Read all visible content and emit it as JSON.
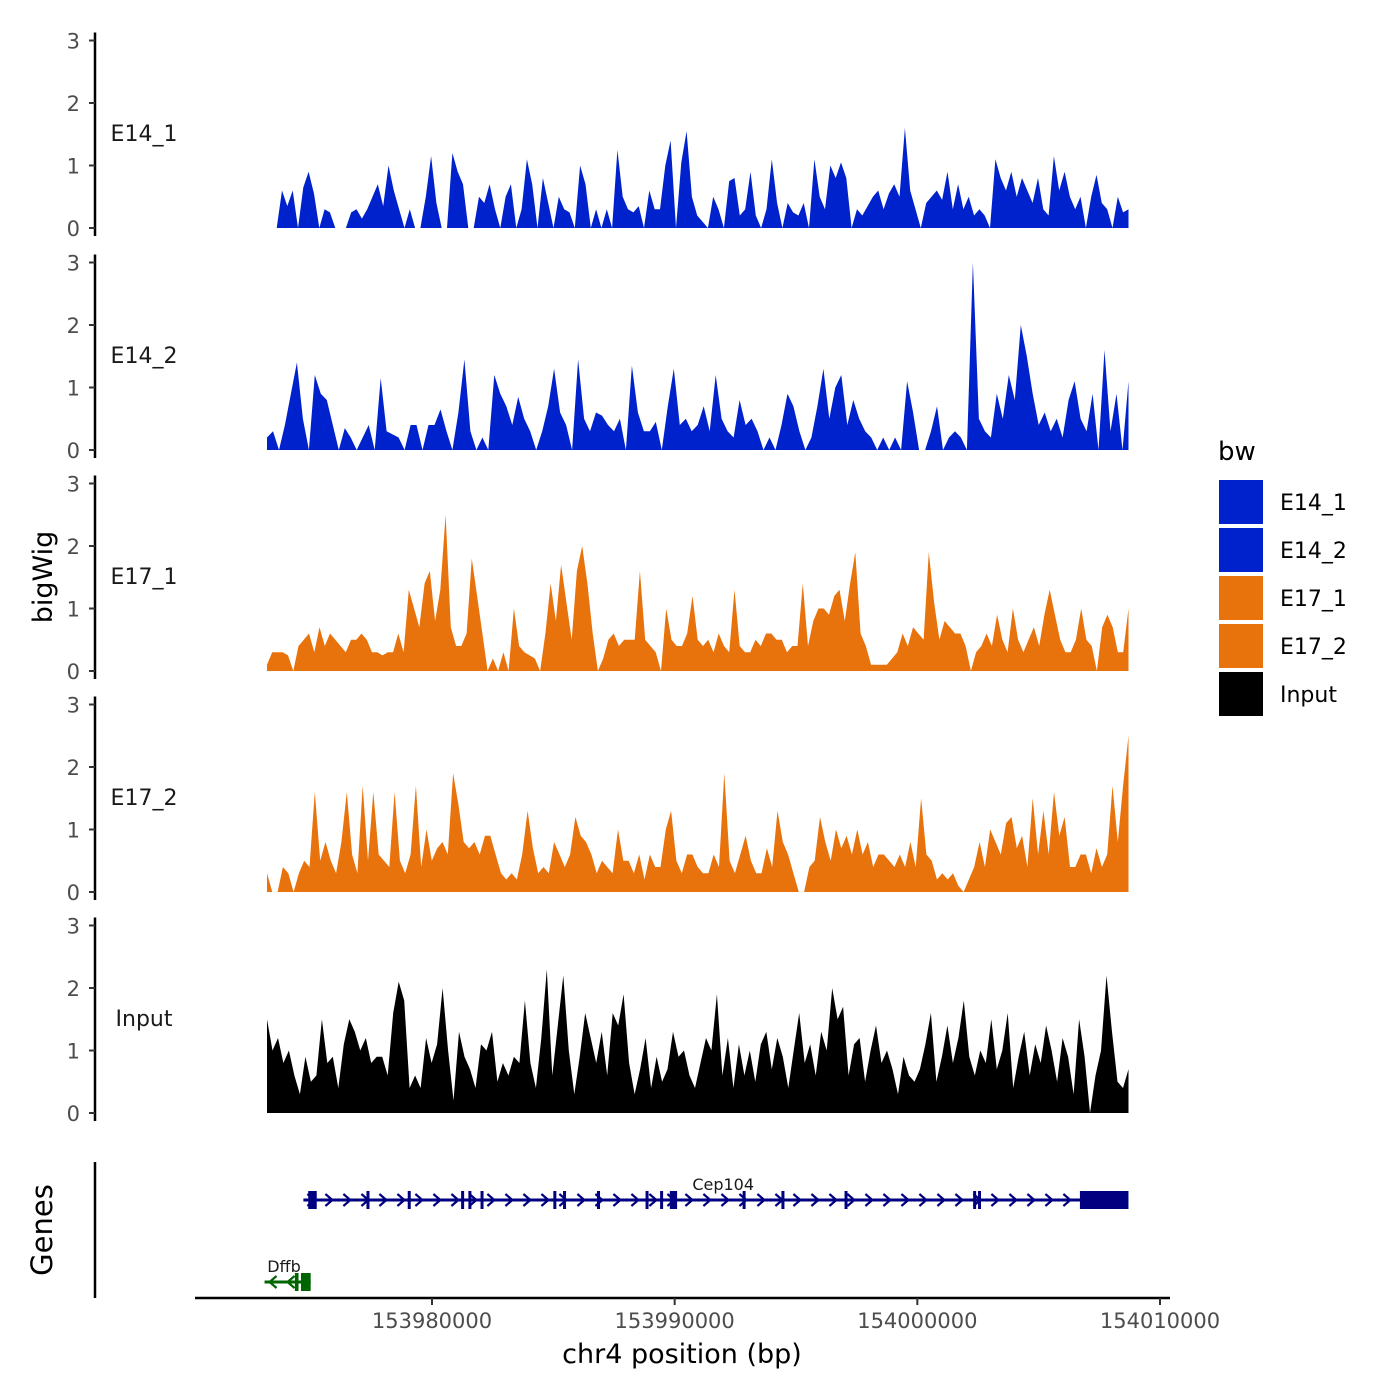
{
  "chart_data": {
    "type": "area",
    "title": "",
    "xlabel": "chr4 position (bp)",
    "ylabel": "bigWig",
    "genes_label": "Genes",
    "xlim": [
      153971000,
      154010500
    ],
    "xticks": [
      153980000,
      153990000,
      154000000,
      154010000
    ],
    "xtick_labels": [
      "153980000",
      "153990000",
      "154000000",
      "154010000"
    ],
    "ylim": [
      0,
      3
    ],
    "yticks": [
      0,
      1,
      2,
      3
    ],
    "ytick_labels": [
      "0",
      "1",
      "2",
      "3"
    ],
    "legend": {
      "title": "bw",
      "position": "right",
      "entries": [
        {
          "label": "E14_1",
          "color": "#0022cc"
        },
        {
          "label": "E14_2",
          "color": "#0022cc"
        },
        {
          "label": "E17_1",
          "color": "#e8720c"
        },
        {
          "label": "E17_2",
          "color": "#e8720c"
        },
        {
          "label": "Input",
          "color": "#000000"
        }
      ]
    },
    "series": [
      {
        "name": "E14_1",
        "color": "#0022cc",
        "x_start": 153973600,
        "x_end": 154008700,
        "values": [
          0,
          0.6,
          0.35,
          0.6,
          0,
          0.65,
          0.9,
          0.55,
          0,
          0.3,
          0.25,
          0,
          0,
          0,
          0.25,
          0.3,
          0.15,
          0.3,
          0.5,
          0.7,
          0.35,
          1.0,
          0.6,
          0.3,
          0,
          0.3,
          0,
          0,
          0.5,
          1.15,
          0.4,
          0,
          0,
          1.2,
          0.9,
          0.7,
          0,
          0,
          0.5,
          0.4,
          0.7,
          0.3,
          0,
          0.5,
          0.7,
          0,
          0.3,
          1.1,
          0.7,
          0,
          0.8,
          0.4,
          0,
          0.5,
          0.3,
          0.25,
          0,
          1.0,
          0.7,
          0,
          0.3,
          0,
          0.3,
          0,
          1.25,
          0.5,
          0.3,
          0.25,
          0.35,
          0,
          0.6,
          0.3,
          0.3,
          1.0,
          1.4,
          0,
          1.05,
          1.55,
          0.5,
          0.2,
          0.1,
          0,
          0.5,
          0.3,
          0,
          0.75,
          0.8,
          0.2,
          0.3,
          0.9,
          0.2,
          0,
          0.3,
          1.1,
          0.4,
          0,
          0.4,
          0.25,
          0.2,
          0.4,
          0,
          1.1,
          0.5,
          0.3,
          1.0,
          0.8,
          1.05,
          0.8,
          0,
          0.3,
          0.2,
          0.35,
          0.5,
          0.6,
          0.3,
          0.55,
          0.7,
          0.5,
          1.6,
          0.6,
          0.3,
          0,
          0.4,
          0.5,
          0.6,
          0.45,
          0.9,
          0.3,
          0.7,
          0.3,
          0.5,
          0.2,
          0.3,
          0.2,
          0,
          1.1,
          0.8,
          0.6,
          0.9,
          0.5,
          0.8,
          0.6,
          0.4,
          0.8,
          0.3,
          0.2,
          1.15,
          0.6,
          0.9,
          0.5,
          0.3,
          0.5,
          0,
          0.5,
          0.85,
          0.4,
          0.3,
          0,
          0.5,
          0.25,
          0.3
        ]
      },
      {
        "name": "E14_2",
        "color": "#0022cc",
        "x_start": 153973200,
        "x_end": 154008700,
        "values": [
          0.2,
          0.3,
          0,
          0.4,
          0.9,
          1.4,
          0.5,
          0,
          1.2,
          0.9,
          0.8,
          0.4,
          0,
          0.35,
          0.2,
          0,
          0.2,
          0.4,
          0,
          1.15,
          0.3,
          0.25,
          0.2,
          0,
          0.4,
          0.4,
          0,
          0.4,
          0.4,
          0.65,
          0.3,
          0,
          0.6,
          1.45,
          0.3,
          0,
          0.2,
          0,
          1.2,
          0.9,
          0.7,
          0.4,
          0.85,
          0.5,
          0.3,
          0,
          0.3,
          0.7,
          1.3,
          0.6,
          0.4,
          0,
          1.45,
          0.5,
          0.3,
          0.6,
          0.55,
          0.4,
          0.3,
          0.5,
          0,
          1.35,
          0.6,
          0.3,
          0.3,
          0.45,
          0,
          0.7,
          1.3,
          0.4,
          0.5,
          0.3,
          0.4,
          0.7,
          0.3,
          1.2,
          0.5,
          0.3,
          0.2,
          0.8,
          0.4,
          0.5,
          0.3,
          0,
          0.2,
          0,
          0.4,
          0.9,
          0.7,
          0.3,
          0,
          0.2,
          0.7,
          1.3,
          0.5,
          1.0,
          1.2,
          0.4,
          0.8,
          0.5,
          0.3,
          0.2,
          0,
          0.2,
          0,
          0.2,
          0,
          1.1,
          0.6,
          0,
          0,
          0.3,
          0.7,
          0,
          0.2,
          0.3,
          0.2,
          0,
          3.0,
          0.5,
          0.3,
          0.2,
          0.9,
          0.5,
          1.2,
          0.8,
          2.0,
          1.5,
          0.9,
          0.4,
          0.6,
          0.3,
          0.5,
          0.2,
          0.8,
          1.1,
          0.5,
          0.3,
          0.9,
          0,
          1.6,
          0.3,
          0.9,
          0,
          1.1
        ]
      },
      {
        "name": "E17_1",
        "color": "#e8720c",
        "x_start": 153973200,
        "x_end": 154008700,
        "values": [
          0.1,
          0.3,
          0.3,
          0.3,
          0.25,
          0,
          0.4,
          0.5,
          0.6,
          0.3,
          0.7,
          0.4,
          0.6,
          0.5,
          0.4,
          0.3,
          0.5,
          0.5,
          0.6,
          0.5,
          0.3,
          0.3,
          0.25,
          0.3,
          0.3,
          0.6,
          0.3,
          1.3,
          1.0,
          0.7,
          1.4,
          1.6,
          0.8,
          1.3,
          2.5,
          0.7,
          0.4,
          0.4,
          0.6,
          1.8,
          1.2,
          0.6,
          0,
          0.2,
          0,
          0.3,
          0,
          1.0,
          0.4,
          0.3,
          0.25,
          0.2,
          0,
          0.6,
          1.4,
          0.8,
          1.7,
          1.1,
          0.5,
          1.6,
          2.0,
          1.4,
          0.6,
          0,
          0.2,
          0.5,
          0.6,
          0.4,
          0.5,
          0.5,
          0.5,
          1.6,
          0.5,
          0.4,
          0.3,
          0,
          1.0,
          0.5,
          0.4,
          0.4,
          0.6,
          1.2,
          0.5,
          0.4,
          0.5,
          0.3,
          0.6,
          0.4,
          0.3,
          1.3,
          0.4,
          0.3,
          0.3,
          0.5,
          0.4,
          0.6,
          0.6,
          0.5,
          0.5,
          0.3,
          0.4,
          0.4,
          1.4,
          0.4,
          0.8,
          1.0,
          1.0,
          0.9,
          1.2,
          1.3,
          0.8,
          1.4,
          1.9,
          0.6,
          0.4,
          0.1,
          0.1,
          0.1,
          0.1,
          0.2,
          0.3,
          0.6,
          0.4,
          0.7,
          0.6,
          0.5,
          1.9,
          1.1,
          0.5,
          0.8,
          0.7,
          0.6,
          0.6,
          0.4,
          0,
          0.3,
          0.4,
          0.6,
          0.4,
          0.9,
          0.5,
          0.3,
          1.0,
          0.5,
          0.3,
          0.5,
          0.7,
          0.4,
          0.9,
          1.3,
          0.9,
          0.5,
          0.3,
          0.3,
          0.5,
          1.0,
          0.5,
          0.4,
          0,
          0.7,
          0.9,
          0.7,
          0.3,
          0.3,
          1.0
        ]
      },
      {
        "name": "E17_2",
        "color": "#e8720c",
        "x_start": 153973200,
        "x_end": 154008700,
        "values": [
          0.3,
          0,
          0,
          0.4,
          0.3,
          0,
          0.3,
          0.5,
          0.4,
          1.6,
          0.5,
          0.8,
          0.5,
          0.3,
          0.8,
          1.6,
          0.6,
          0.3,
          1.7,
          0.5,
          1.6,
          0.6,
          0.5,
          0.4,
          1.6,
          0.5,
          0.3,
          0.6,
          1.7,
          0.4,
          1.0,
          0.5,
          0.7,
          0.8,
          0.6,
          1.9,
          1.4,
          0.8,
          0.7,
          0.8,
          0.6,
          0.9,
          0.9,
          0.6,
          0.3,
          0.2,
          0.3,
          0.2,
          0.6,
          1.3,
          0.7,
          0.3,
          0.4,
          0.3,
          0.8,
          0.6,
          0.4,
          0.6,
          1.2,
          0.9,
          0.8,
          0.6,
          0.3,
          0.5,
          0.4,
          0.3,
          1.0,
          0.5,
          0.5,
          0.3,
          0.6,
          0.2,
          0.6,
          0.4,
          0.4,
          1.0,
          1.3,
          0.5,
          0.3,
          0.6,
          0.6,
          0.4,
          0.3,
          0.3,
          0.6,
          0.4,
          1.9,
          0.5,
          0.3,
          0.6,
          0.9,
          0.5,
          0.3,
          0.3,
          0.7,
          0.4,
          1.3,
          0.8,
          0.6,
          0.3,
          0,
          0,
          0.4,
          0.5,
          1.2,
          0.8,
          0.5,
          1.0,
          0.7,
          0.9,
          0.6,
          1.0,
          0.6,
          0.8,
          0.4,
          0.6,
          0.6,
          0.5,
          0.4,
          0.6,
          0.4,
          0.8,
          0.4,
          1.5,
          0.6,
          0.5,
          0.2,
          0.3,
          0.2,
          0.3,
          0.1,
          0,
          0.2,
          0.4,
          0.8,
          0.4,
          1.0,
          0.8,
          0.6,
          1.1,
          1.2,
          0.7,
          0.9,
          0.4,
          1.5,
          0.6,
          1.3,
          0.6,
          1.6,
          0.9,
          1.2,
          0.4,
          0.4,
          0.6,
          0.6,
          0.3,
          0.7,
          0.4,
          0.6,
          1.7,
          0.8,
          1.7,
          2.5
        ]
      },
      {
        "name": "Input",
        "color": "#000000",
        "x_start": 153973200,
        "x_end": 154008700,
        "values": [
          1.5,
          1.0,
          1.2,
          0.8,
          1.0,
          0.6,
          0.3,
          0.9,
          0.5,
          0.6,
          1.5,
          0.8,
          0.9,
          0.4,
          1.1,
          1.5,
          1.3,
          1.0,
          1.2,
          0.8,
          0.9,
          0.9,
          0.6,
          1.6,
          2.1,
          1.8,
          0.4,
          0.6,
          0.4,
          1.2,
          0.8,
          1.1,
          2.0,
          1.0,
          0.2,
          1.3,
          0.9,
          0.7,
          0.4,
          1.1,
          1.0,
          1.3,
          0.5,
          0.8,
          0.6,
          0.9,
          0.8,
          1.8,
          0.8,
          0.4,
          1.2,
          2.3,
          0.6,
          1.4,
          2.2,
          1.0,
          0.3,
          0.9,
          1.6,
          1.2,
          0.8,
          1.3,
          0.6,
          1.6,
          1.4,
          1.9,
          0.8,
          0.3,
          0.7,
          1.2,
          0.4,
          0.9,
          0.5,
          0.7,
          1.3,
          0.9,
          1.0,
          0.6,
          0.4,
          0.8,
          1.2,
          1.0,
          1.9,
          0.6,
          1.2,
          0.4,
          1.1,
          0.6,
          1.0,
          0.5,
          1.1,
          1.3,
          0.7,
          1.2,
          0.9,
          0.4,
          1.0,
          1.6,
          0.8,
          1.1,
          0.6,
          1.3,
          1.0,
          2.0,
          1.5,
          1.7,
          0.6,
          1.1,
          1.2,
          0.5,
          1.0,
          1.4,
          0.8,
          1.0,
          0.7,
          0.3,
          0.9,
          0.6,
          0.5,
          0.7,
          1.1,
          1.6,
          0.5,
          0.9,
          1.4,
          0.8,
          1.2,
          1.8,
          0.9,
          0.6,
          1.0,
          0.8,
          1.5,
          0.7,
          1.0,
          1.6,
          0.4,
          0.9,
          1.3,
          0.6,
          1.1,
          0.8,
          1.4,
          1.0,
          0.5,
          1.2,
          0.9,
          0.3,
          1.5,
          0.9,
          0,
          0.6,
          1.0,
          2.2,
          1.3,
          0.5,
          0.4,
          0.7
        ]
      }
    ],
    "genes": [
      {
        "name": "Cep104",
        "strand": "+",
        "color": "#000080",
        "start": 153974700,
        "end": 154008700,
        "label_pos": 153992000,
        "exons": [
          [
            153974900,
            153975250
          ],
          [
            153977300,
            153977400
          ],
          [
            153979000,
            153979100
          ],
          [
            153981200,
            153981300
          ],
          [
            153981500,
            153981580
          ],
          [
            153982000,
            153982100
          ],
          [
            153985000,
            153985100
          ],
          [
            153985400,
            153985480
          ],
          [
            153986800,
            153986920
          ],
          [
            153988800,
            153988900
          ],
          [
            153989400,
            153989500
          ],
          [
            153989800,
            153990100
          ],
          [
            153992800,
            153992900
          ],
          [
            153994400,
            153994480
          ],
          [
            153997000,
            153997100
          ],
          [
            154002300,
            154002380
          ],
          [
            154002500,
            154002580
          ],
          [
            154006700,
            154008700
          ]
        ]
      },
      {
        "name": "Dffb",
        "strand": "-",
        "color": "#006400",
        "start": 153973100,
        "end": 153975000,
        "label_pos": 153973900,
        "exons": [
          [
            153974350,
            153974500
          ],
          [
            153974600,
            153975000
          ]
        ]
      }
    ]
  }
}
